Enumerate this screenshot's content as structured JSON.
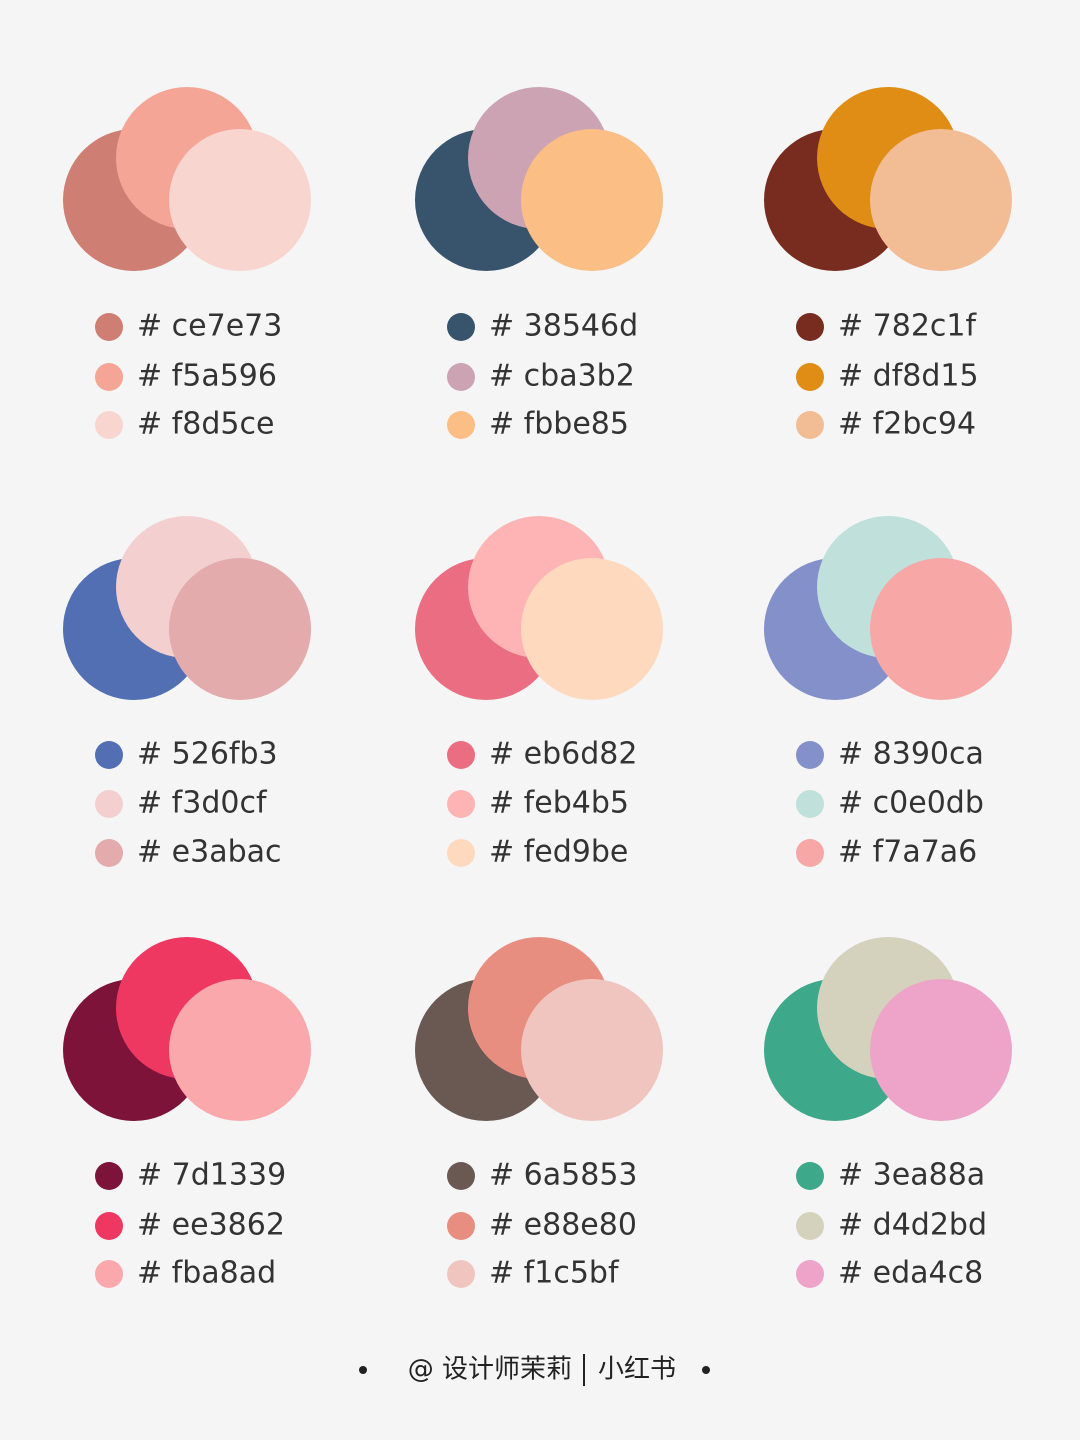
{
  "palettes": [
    {
      "colors": [
        "# ce7e73",
        "# f5a596",
        "# f8d5ce"
      ]
    },
    {
      "colors": [
        "# 38546d",
        "# cba3b2",
        "# fbbe85"
      ]
    },
    {
      "colors": [
        "# 782c1f",
        "# df8d15",
        "# f2bc94"
      ]
    },
    {
      "colors": [
        "# 526fb3",
        "# f3d0cf",
        "# e3abac"
      ]
    },
    {
      "colors": [
        "# eb6d82",
        "# feb4b5",
        "# fed9be"
      ]
    },
    {
      "colors": [
        "# 8390ca",
        "# c0e0db",
        "# f7a7a6"
      ]
    },
    {
      "colors": [
        "# 7d1339",
        "# ee3862",
        "# fba8ad"
      ]
    },
    {
      "colors": [
        "# 6a5853",
        "# e88e80",
        "# f1c5bf"
      ]
    },
    {
      "colors": [
        "# 3ea88a",
        "# d4d2bd",
        "# eda4c8"
      ]
    }
  ],
  "footer": {
    "handle": "@ 设计师茉莉",
    "platform": "小红书"
  }
}
